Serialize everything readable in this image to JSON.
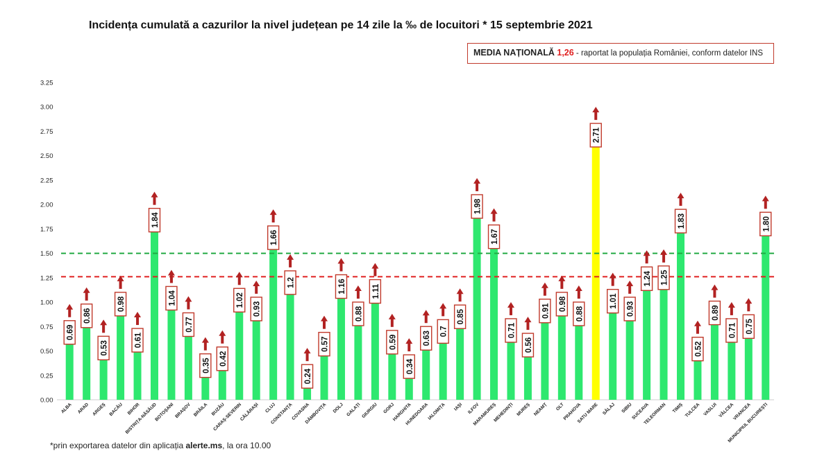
{
  "title_text": "Incidența cumulată a cazurilor la nivel județean pe 14 zile la ‰ de locuitori * ",
  "title_date": "15 septembrie 2021",
  "legend": {
    "label": "MEDIA NAȚIONALĂ ",
    "value": "1,26",
    "note": " - raportat la populația României, conform datelor INS"
  },
  "footnote": {
    "pre": "*prin exportarea datelor din aplicația ",
    "bold": "alerte.ms",
    "post": ", la ora 10.00"
  },
  "colors": {
    "bar": "#2ee86f",
    "highlight_bar": "#ffff00",
    "arrow": "#b22222",
    "label_border": "#c0392b",
    "national_line": "#e02020",
    "threshold_line": "#22aa44"
  },
  "chart_data": {
    "type": "bar",
    "categories": [
      "ALBA",
      "ARAD",
      "ARGEȘ",
      "BACĂU",
      "BIHOR",
      "BISTRIȚA-NĂSĂUD",
      "BOTOȘANI",
      "BRAȘOV",
      "BRĂILA",
      "BUZĂU",
      "CARAȘ-SEVERIN",
      "CĂLĂRAȘI",
      "CLUJ",
      "CONSTANȚA",
      "COVASNA",
      "DÂMBOVIȚA",
      "DOLJ",
      "GALAȚI",
      "GIURGIU",
      "GORJ",
      "HARGHITA",
      "HUNEDOARA",
      "IALOMIȚA",
      "IAȘI",
      "ILFOV",
      "MARAMUREȘ",
      "MEHEDINȚI",
      "MUREȘ",
      "NEAMȚ",
      "OLT",
      "PRAHOVA",
      "SATU MARE",
      "SĂLAJ",
      "SIBIU",
      "SUCEAVA",
      "TELEORMAN",
      "TIMIȘ",
      "TULCEA",
      "VASLUI",
      "VÂLCEA",
      "VRANCEA",
      "MUNICIPIUL BUCUREȘTI"
    ],
    "values": [
      0.69,
      0.86,
      0.53,
      0.98,
      0.61,
      1.84,
      1.04,
      0.77,
      0.35,
      0.42,
      1.02,
      0.93,
      1.66,
      1.2,
      0.24,
      0.57,
      1.16,
      0.88,
      1.11,
      0.59,
      0.34,
      0.63,
      0.7,
      0.85,
      1.98,
      1.67,
      0.71,
      0.56,
      0.91,
      0.98,
      0.88,
      2.71,
      1.01,
      0.93,
      1.24,
      1.25,
      1.83,
      0.52,
      0.89,
      0.71,
      0.75,
      1.8
    ],
    "value_labels": [
      "0.69",
      "0.86",
      "0.53",
      "0.98",
      "0.61",
      "1.84",
      "1.04",
      "0.77",
      "0.35",
      "0.42",
      "1.02",
      "0.93",
      "1.66",
      "1.2",
      "0.24",
      "0.57",
      "1.16",
      "0.88",
      "1.11",
      "0.59",
      "0.34",
      "0.63",
      "0.7",
      "0.85",
      "1.98",
      "1.67",
      "0.71",
      "0.56",
      "0.91",
      "0.98",
      "0.88",
      "2.71",
      "1.01",
      "0.93",
      "1.24",
      "1.25",
      "1.83",
      "0.52",
      "0.89",
      "0.71",
      "0.75",
      "1.80"
    ],
    "highlight_index": 31,
    "ylim": [
      0,
      3.25
    ],
    "yticks": [
      "0.00",
      "0.25",
      "0.50",
      "0.75",
      "1.00",
      "1.25",
      "1.50",
      "1.75",
      "2.00",
      "2.25",
      "2.50",
      "2.75",
      "3.00",
      "3.25"
    ],
    "reference_lines": [
      {
        "value": 1.26,
        "style": "dashed",
        "color": "#e02020"
      },
      {
        "value": 1.5,
        "style": "dashed",
        "color": "#22aa44"
      }
    ],
    "grid": false,
    "legend_position": "top-right"
  }
}
